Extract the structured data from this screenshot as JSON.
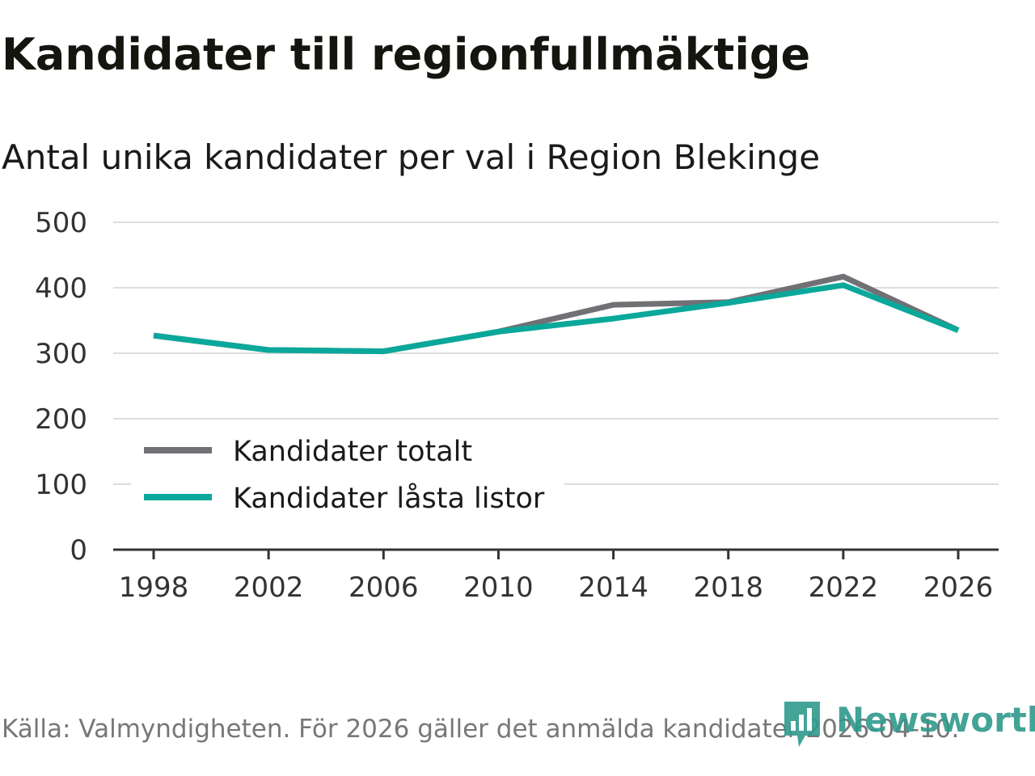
{
  "title": "Kandidater till regionfullmäktige",
  "subtitle": "Antal unika kandidater per val i Region Blekinge",
  "source": "Källa: Valmyndigheten. För 2026 gäller det anmälda kandidater 2026-04-10.",
  "logo": {
    "text": "Newsworthy",
    "icon": "newsworthy-logo-icon"
  },
  "colors": {
    "totalt": "#707075",
    "lasta": "#0aa89a",
    "grid": "#dddddd",
    "axis": "#333333"
  },
  "chart_data": {
    "type": "line",
    "title": "Kandidater till regionfullmäktige",
    "subtitle": "Antal unika kandidater per val i Region Blekinge",
    "x": [
      1998,
      2002,
      2006,
      2010,
      2014,
      2018,
      2022,
      2026
    ],
    "x_tick_labels": [
      "1998",
      "2002",
      "2006",
      "2010",
      "2014",
      "2018",
      "2022",
      "2026"
    ],
    "y_ticks": [
      0,
      100,
      200,
      300,
      400,
      500
    ],
    "y_tick_labels": [
      "0",
      "100",
      "200",
      "300",
      "400",
      "500"
    ],
    "ylim": [
      0,
      500
    ],
    "grid": true,
    "legend_position": "bottom-left",
    "series": [
      {
        "name": "Kandidater totalt",
        "color": "#707075",
        "values": [
          327,
          305,
          303,
          333,
          374,
          378,
          417,
          335
        ]
      },
      {
        "name": "Kandidater låsta listor",
        "color": "#0aa89a",
        "values": [
          327,
          305,
          303,
          333,
          353,
          377,
          404,
          335
        ]
      }
    ]
  }
}
